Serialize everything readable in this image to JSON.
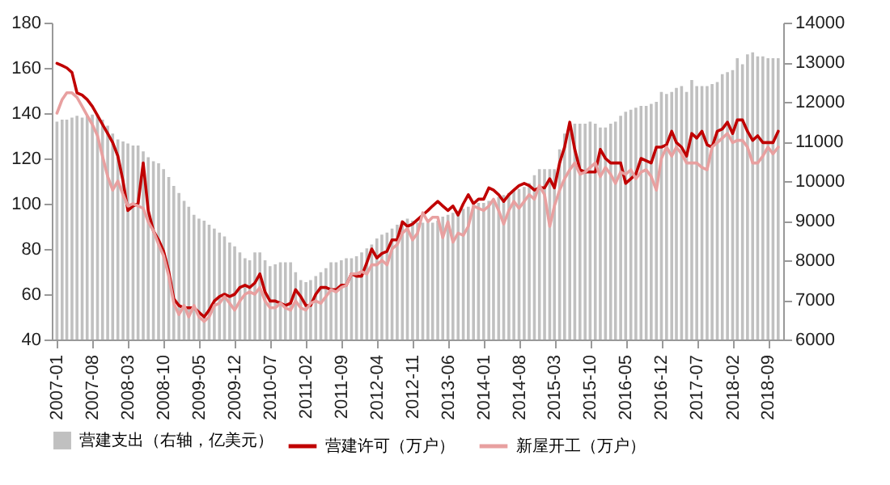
{
  "chart_data": {
    "type": "line",
    "xlim": [
      "2006-12",
      "2018-12"
    ],
    "xticks": [
      "2007-01",
      "2007-08",
      "2008-03",
      "2008-10",
      "2009-05",
      "2009-12",
      "2010-07",
      "2011-02",
      "2011-09",
      "2012-04",
      "2012-11",
      "2013-06",
      "2014-01",
      "2014-08",
      "2015-03",
      "2015-10",
      "2016-05",
      "2016-12",
      "2017-07",
      "2018-02",
      "2018-09"
    ],
    "ylim": [
      40,
      180
    ],
    "legend": "bottom",
    "yticks": [
      40,
      60,
      80,
      100,
      120,
      140,
      160,
      180
    ],
    "y2lim": [
      6000,
      14000
    ],
    "y2ticks": [
      6000,
      7000,
      8000,
      9000,
      10000,
      11000,
      12000,
      13000,
      14000
    ],
    "x": [
      "2007-01",
      "2007-02",
      "2007-03",
      "2007-04",
      "2007-05",
      "2007-06",
      "2007-07",
      "2007-08",
      "2007-09",
      "2007-10",
      "2007-11",
      "2007-12",
      "2008-01",
      "2008-02",
      "2008-03",
      "2008-04",
      "2008-05",
      "2008-06",
      "2008-07",
      "2008-08",
      "2008-09",
      "2008-10",
      "2008-11",
      "2008-12",
      "2009-01",
      "2009-02",
      "2009-03",
      "2009-04",
      "2009-05",
      "2009-06",
      "2009-07",
      "2009-08",
      "2009-09",
      "2009-10",
      "2009-11",
      "2009-12",
      "2010-01",
      "2010-02",
      "2010-03",
      "2010-04",
      "2010-05",
      "2010-06",
      "2010-07",
      "2010-08",
      "2010-09",
      "2010-10",
      "2010-11",
      "2010-12",
      "2011-01",
      "2011-02",
      "2011-03",
      "2011-04",
      "2011-05",
      "2011-06",
      "2011-07",
      "2011-08",
      "2011-09",
      "2011-10",
      "2011-11",
      "2011-12",
      "2012-01",
      "2012-02",
      "2012-03",
      "2012-04",
      "2012-05",
      "2012-06",
      "2012-07",
      "2012-08",
      "2012-09",
      "2012-10",
      "2012-11",
      "2012-12",
      "2013-01",
      "2013-02",
      "2013-03",
      "2013-04",
      "2013-05",
      "2013-06",
      "2013-07",
      "2013-08",
      "2013-09",
      "2013-10",
      "2013-11",
      "2013-12",
      "2014-01",
      "2014-02",
      "2014-03",
      "2014-04",
      "2014-05",
      "2014-06",
      "2014-07",
      "2014-08",
      "2014-09",
      "2014-10",
      "2014-11",
      "2014-12",
      "2015-01",
      "2015-02",
      "2015-03",
      "2015-04",
      "2015-05",
      "2015-06",
      "2015-07",
      "2015-08",
      "2015-09",
      "2015-10",
      "2015-11",
      "2015-12",
      "2016-01",
      "2016-02",
      "2016-03",
      "2016-04",
      "2016-05",
      "2016-06",
      "2016-07",
      "2016-08",
      "2016-09",
      "2016-10",
      "2016-11",
      "2016-12",
      "2017-01",
      "2017-02",
      "2017-03",
      "2017-04",
      "2017-05",
      "2017-06",
      "2017-07",
      "2017-08",
      "2017-09",
      "2017-10",
      "2017-11",
      "2017-12",
      "2018-01",
      "2018-02",
      "2018-03",
      "2018-04",
      "2018-05",
      "2018-06",
      "2018-07",
      "2018-08",
      "2018-09",
      "2018-10",
      "2018-11"
    ],
    "series": [
      {
        "name": "营建支出（右轴，亿美元）",
        "type": "bar",
        "axis": "y2",
        "color": "#c0c0c0",
        "values": [
          11500,
          11550,
          11550,
          11600,
          11650,
          11600,
          11650,
          11680,
          11650,
          11550,
          11400,
          11200,
          11050,
          11000,
          10950,
          10900,
          10900,
          10750,
          10600,
          10500,
          10450,
          10300,
          10100,
          9880,
          9700,
          9500,
          9350,
          9150,
          9050,
          9000,
          8900,
          8800,
          8700,
          8600,
          8450,
          8350,
          8200,
          8050,
          8000,
          8200,
          8200,
          8000,
          7850,
          7900,
          7950,
          7950,
          7950,
          7700,
          7500,
          7450,
          7500,
          7600,
          7700,
          7800,
          7950,
          7950,
          8000,
          8050,
          8050,
          8100,
          8200,
          8300,
          8400,
          8550,
          8650,
          8700,
          8800,
          8900,
          9000,
          9050,
          9000,
          8950,
          8950,
          8950,
          8950,
          9000,
          9100,
          9150,
          9200,
          9250,
          9300,
          9350,
          9400,
          9450,
          9450,
          9500,
          9550,
          9600,
          9650,
          9700,
          9750,
          9800,
          9850,
          9950,
          10150,
          10300,
          10300,
          10300,
          10300,
          10800,
          11200,
          11400,
          11450,
          11450,
          11450,
          11500,
          11450,
          11350,
          11350,
          11450,
          11500,
          11650,
          11750,
          11800,
          11850,
          11900,
          11900,
          11950,
          12000,
          12250,
          12200,
          12250,
          12350,
          12400,
          12250,
          12550,
          12400,
          12400,
          12400,
          12450,
          12500,
          12700,
          12750,
          12800,
          13100,
          12950,
          13200,
          13250,
          13150,
          13150,
          13100,
          13100,
          13100
        ]
      },
      {
        "name": "营建许可（万户）",
        "color": "#c00000",
        "values": [
          162,
          161,
          160,
          158,
          149,
          148,
          146,
          143,
          139,
          135,
          131,
          127,
          121,
          110,
          97,
          99,
          100,
          118,
          97,
          88,
          84,
          79,
          70,
          58,
          55,
          54,
          54,
          54,
          52,
          50,
          53,
          57,
          59,
          60,
          59,
          60,
          63,
          64,
          63,
          65,
          69,
          61,
          57,
          57,
          56,
          55,
          56,
          62,
          59,
          55,
          55,
          60,
          63,
          63,
          62,
          62,
          64,
          64,
          69,
          68,
          68,
          74,
          80,
          76,
          78,
          79,
          84,
          84,
          92,
          90,
          91,
          93,
          95,
          97,
          99,
          101,
          99,
          97,
          99,
          95,
          100,
          104,
          100,
          102,
          102,
          107,
          106,
          104,
          101,
          104,
          106,
          108,
          109,
          108,
          106,
          107,
          107,
          111,
          107,
          118,
          125,
          136,
          124,
          115,
          114,
          114,
          114,
          124,
          120,
          118,
          118,
          118,
          109,
          111,
          113,
          120,
          119,
          118,
          125,
          125,
          126,
          132,
          127,
          125,
          121,
          131,
          129,
          132,
          126,
          125,
          132,
          133,
          136,
          131,
          137,
          137,
          132,
          128,
          130,
          127,
          127,
          127,
          132
        ]
      },
      {
        "name": "新屋开工（万户）",
        "color": "#e8a0a0",
        "values": [
          140,
          146,
          149,
          149,
          147,
          143,
          139,
          135,
          130,
          121,
          112,
          106,
          110,
          104,
          99,
          100,
          99,
          98,
          92,
          88,
          82,
          77,
          68,
          56,
          51,
          55,
          50,
          55,
          50,
          48,
          50,
          55,
          56,
          59,
          56,
          53,
          57,
          60,
          61,
          60,
          63,
          57,
          54,
          54,
          56,
          54,
          53,
          57,
          54,
          53,
          56,
          57,
          56,
          59,
          62,
          61,
          63,
          64,
          69,
          69,
          70,
          69,
          73,
          73,
          75,
          73,
          80,
          82,
          87,
          89,
          84,
          87,
          96,
          92,
          94,
          94,
          85,
          92,
          83,
          87,
          86,
          90,
          99,
          98,
          97,
          99,
          102,
          97,
          91,
          97,
          101,
          98,
          101,
          104,
          102,
          108,
          104,
          90,
          99,
          106,
          111,
          115,
          118,
          113,
          114,
          116,
          118,
          112,
          116,
          113,
          109,
          114,
          113,
          115,
          111,
          114,
          115,
          112,
          106,
          120,
          125,
          121,
          125,
          122,
          118,
          118,
          118,
          116,
          115,
          125,
          127,
          129,
          131,
          127,
          128,
          128,
          125,
          118,
          118,
          121,
          125,
          122,
          125
        ]
      }
    ]
  }
}
